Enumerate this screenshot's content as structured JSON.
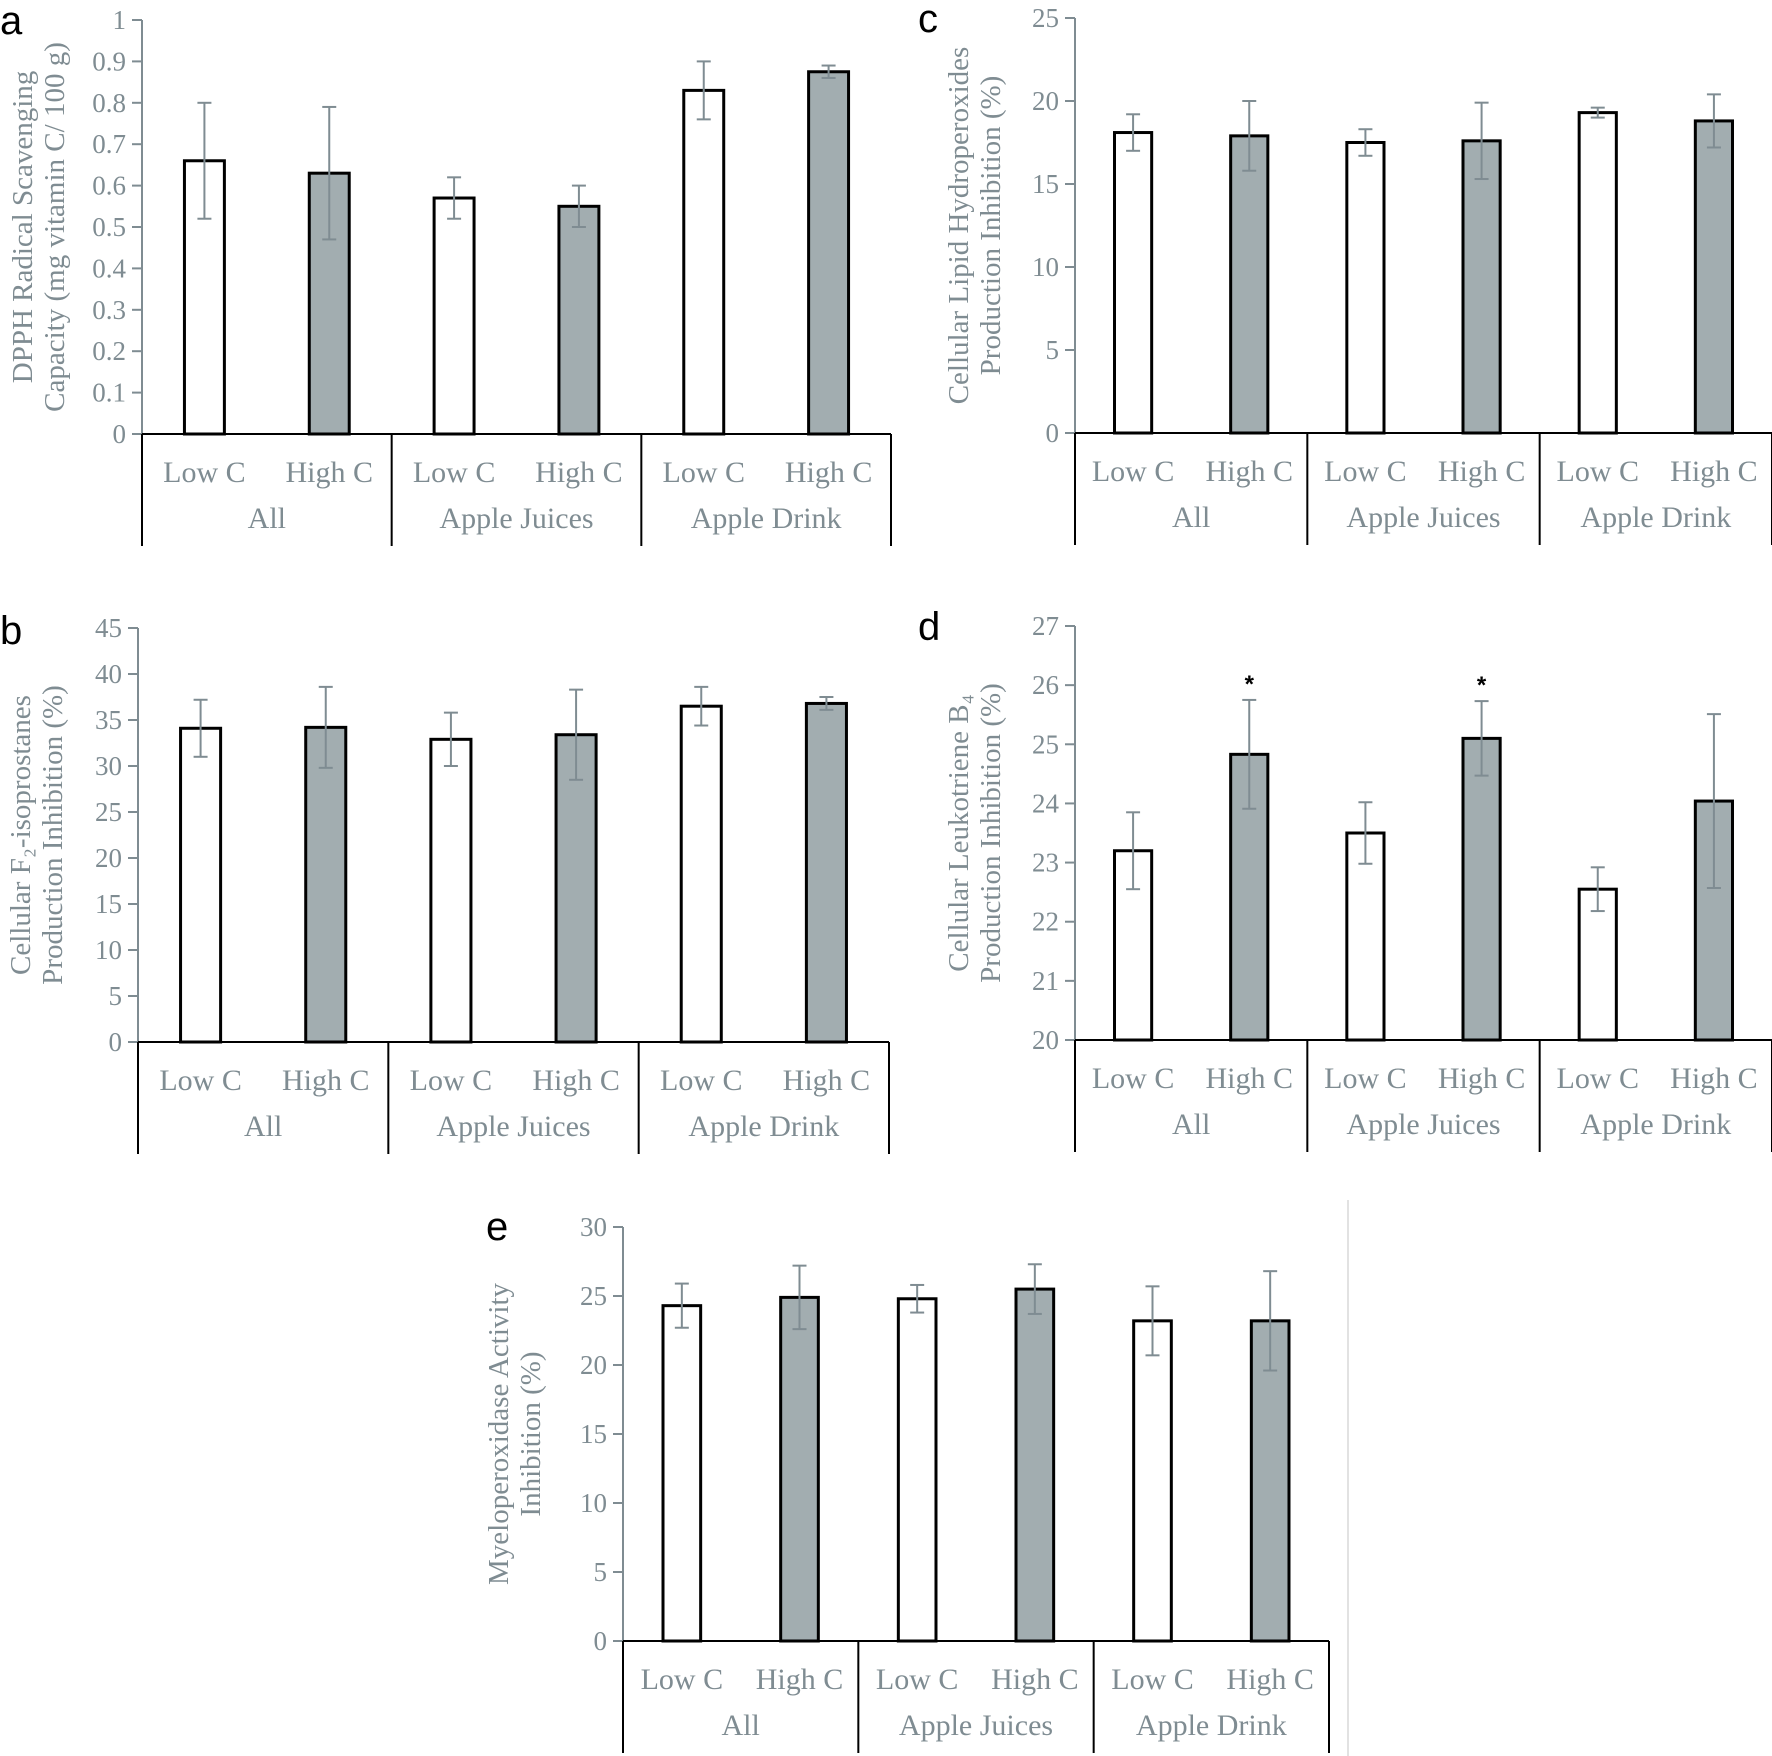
{
  "chart_data": [
    {
      "type": "bar",
      "panel": "a",
      "ylabel": [
        "DPPH Radical Scavenging",
        "Capacity (mg vitamin C/ 100 g)"
      ],
      "ylim": [
        0,
        1
      ],
      "yticks": [
        "0",
        "0.1",
        "0.2",
        "0.3",
        "0.4",
        "0.5",
        "0.6",
        "0.7",
        "0.8",
        "0.9",
        "1"
      ],
      "groups": [
        "All",
        "Apple Juices",
        "Apple Drink"
      ],
      "categories": [
        "Low C",
        "High C",
        "Low C",
        "High C",
        "Low C",
        "High C"
      ],
      "values": [
        0.66,
        0.63,
        0.57,
        0.55,
        0.83,
        0.875
      ],
      "errors": [
        0.14,
        0.16,
        0.05,
        0.05,
        0.07,
        0.015
      ],
      "significance": [
        "",
        "",
        "",
        "",
        "",
        ""
      ],
      "colors": [
        "#ffffff",
        "#a2adb0",
        "#ffffff",
        "#a2adb0",
        "#ffffff",
        "#a2adb0"
      ]
    },
    {
      "type": "bar",
      "panel": "b",
      "ylabel": [
        "Cellular F₂-isoprostanes",
        "Production Inhibition (%)"
      ],
      "ylim": [
        0,
        45
      ],
      "yticks": [
        "0",
        "5",
        "10",
        "15",
        "20",
        "25",
        "30",
        "35",
        "40",
        "45"
      ],
      "groups": [
        "All",
        "Apple Juices",
        "Apple Drink"
      ],
      "categories": [
        "Low C",
        "High C",
        "Low C",
        "High C",
        "Low C",
        "High C"
      ],
      "values": [
        34.1,
        34.2,
        32.9,
        33.4,
        36.5,
        36.8
      ],
      "errors": [
        3.1,
        4.4,
        2.9,
        4.9,
        2.1,
        0.7
      ],
      "significance": [
        "",
        "",
        "",
        "",
        "",
        ""
      ],
      "colors": [
        "#ffffff",
        "#a2adb0",
        "#ffffff",
        "#a2adb0",
        "#ffffff",
        "#a2adb0"
      ]
    },
    {
      "type": "bar",
      "panel": "c",
      "ylabel": [
        "Cellular Lipid Hydroperoxides",
        "Production Inhibition (%)"
      ],
      "ylim": [
        0,
        25
      ],
      "yticks": [
        "0",
        "5",
        "10",
        "15",
        "20",
        "25"
      ],
      "groups": [
        "All",
        "Apple Juices",
        "Apple Drink"
      ],
      "categories": [
        "Low C",
        "High C",
        "Low C",
        "High C",
        "Low C",
        "High C"
      ],
      "values": [
        18.1,
        17.9,
        17.5,
        17.6,
        19.3,
        18.8
      ],
      "errors": [
        1.1,
        2.1,
        0.8,
        2.3,
        0.3,
        1.6
      ],
      "significance": [
        "",
        "",
        "",
        "",
        "",
        ""
      ],
      "colors": [
        "#ffffff",
        "#a2adb0",
        "#ffffff",
        "#a2adb0",
        "#ffffff",
        "#a2adb0"
      ]
    },
    {
      "type": "bar",
      "panel": "d",
      "ylabel": [
        "Cellular Leukotriene B₄",
        "Production Inhibition (%)"
      ],
      "ylim": [
        20,
        27
      ],
      "yticks": [
        "20",
        "21",
        "22",
        "23",
        "24",
        "25",
        "26",
        "27"
      ],
      "groups": [
        "All",
        "Apple Juices",
        "Apple Drink"
      ],
      "categories": [
        "Low C",
        "High C",
        "Low C",
        "High C",
        "Low C",
        "High C"
      ],
      "values": [
        23.2,
        24.83,
        23.5,
        25.1,
        22.55,
        24.04
      ],
      "errors": [
        0.65,
        0.92,
        0.52,
        0.63,
        0.37,
        1.47
      ],
      "significance": [
        "",
        "*",
        "",
        "*",
        "",
        ""
      ],
      "colors": [
        "#ffffff",
        "#a2adb0",
        "#ffffff",
        "#a2adb0",
        "#ffffff",
        "#a2adb0"
      ]
    },
    {
      "type": "bar",
      "panel": "e",
      "ylabel": [
        "Myeloperoxidase Activity",
        "Inhibition (%)"
      ],
      "ylim": [
        0,
        30
      ],
      "yticks": [
        "0",
        "5",
        "10",
        "15",
        "20",
        "25",
        "30"
      ],
      "groups": [
        "All",
        "Apple Juices",
        "Apple Drink"
      ],
      "categories": [
        "Low C",
        "High C",
        "Low C",
        "High C",
        "Low C",
        "High C"
      ],
      "values": [
        24.3,
        24.9,
        24.8,
        25.5,
        23.2,
        23.2
      ],
      "errors": [
        1.6,
        2.3,
        1.0,
        1.8,
        2.5,
        3.6
      ],
      "significance": [
        "",
        "",
        "",
        "",
        "",
        ""
      ],
      "colors": [
        "#ffffff",
        "#a2adb0",
        "#ffffff",
        "#a2adb0",
        "#ffffff",
        "#a2adb0"
      ]
    }
  ]
}
